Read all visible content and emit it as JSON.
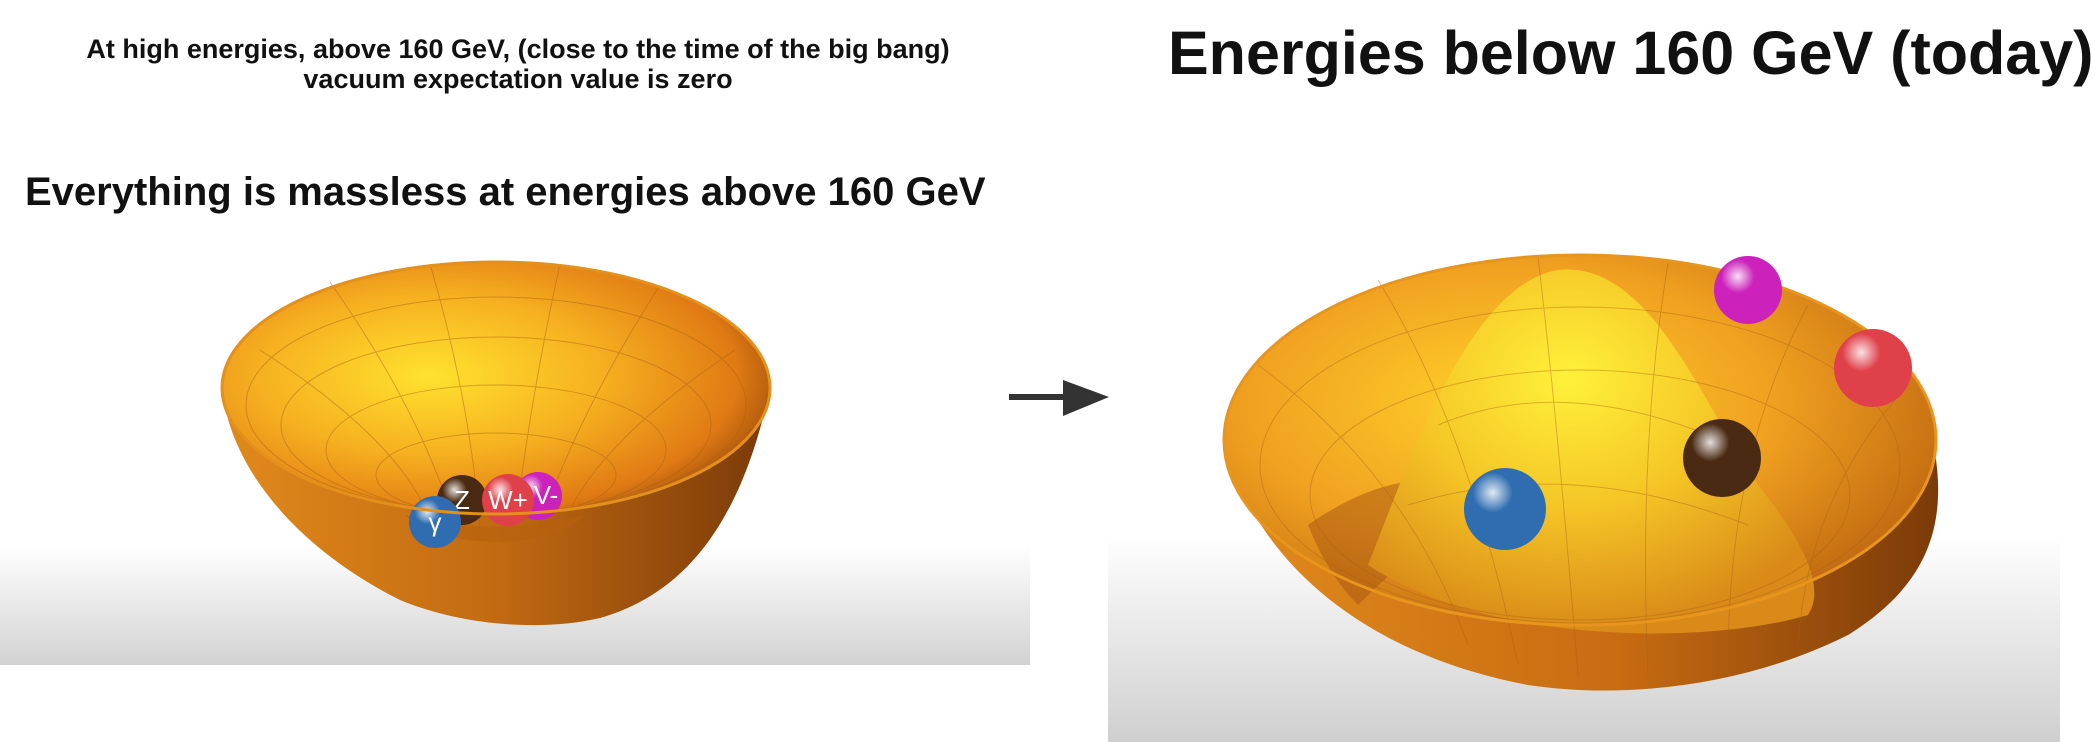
{
  "left": {
    "heading_line1": "At high energies, above 160 GeV, (close to the time of the big bang)",
    "heading_line2": "vacuum expectation value is zero",
    "subheading": "Everything is massless at energies above 160 GeV",
    "particles": [
      {
        "label": "γ",
        "color": "#2f6db0"
      },
      {
        "label": "Z",
        "color": "#4a2a12"
      },
      {
        "label": "W+",
        "color": "#e0404a"
      },
      {
        "label": "V-",
        "color": "#cc22bb"
      }
    ]
  },
  "right": {
    "heading": "Energies below 160 GeV (today)",
    "particles": [
      {
        "color": "#cc22bb"
      },
      {
        "color": "#e0404a"
      },
      {
        "color": "#4a2a12"
      },
      {
        "color": "#2f6db0"
      }
    ]
  },
  "colors": {
    "bowl_outer": "#c76a10",
    "bowl_inner": "#f0a020",
    "bowl_highlight": "#ffe033",
    "arrow": "#333333"
  },
  "icons": [
    "arrow-right-icon"
  ]
}
